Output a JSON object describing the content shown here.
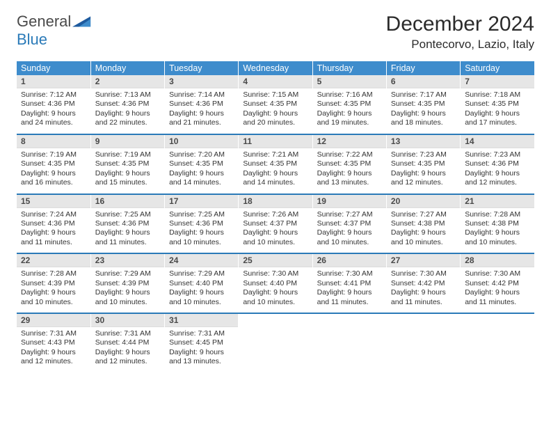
{
  "logo": {
    "word1": "General",
    "word2": "Blue"
  },
  "header": {
    "title": "December 2024",
    "location": "Pontecorvo, Lazio, Italy"
  },
  "colors": {
    "header_bg": "#3e8ccc",
    "row_border": "#2a7ab8",
    "daynum_bg": "#e6e6e6",
    "text": "#333333",
    "logo_blue": "#2a7ab8"
  },
  "weekdays": [
    "Sunday",
    "Monday",
    "Tuesday",
    "Wednesday",
    "Thursday",
    "Friday",
    "Saturday"
  ],
  "weeks": [
    [
      {
        "n": "1",
        "sr": "Sunrise: 7:12 AM",
        "ss": "Sunset: 4:36 PM",
        "d1": "Daylight: 9 hours",
        "d2": "and 24 minutes."
      },
      {
        "n": "2",
        "sr": "Sunrise: 7:13 AM",
        "ss": "Sunset: 4:36 PM",
        "d1": "Daylight: 9 hours",
        "d2": "and 22 minutes."
      },
      {
        "n": "3",
        "sr": "Sunrise: 7:14 AM",
        "ss": "Sunset: 4:36 PM",
        "d1": "Daylight: 9 hours",
        "d2": "and 21 minutes."
      },
      {
        "n": "4",
        "sr": "Sunrise: 7:15 AM",
        "ss": "Sunset: 4:35 PM",
        "d1": "Daylight: 9 hours",
        "d2": "and 20 minutes."
      },
      {
        "n": "5",
        "sr": "Sunrise: 7:16 AM",
        "ss": "Sunset: 4:35 PM",
        "d1": "Daylight: 9 hours",
        "d2": "and 19 minutes."
      },
      {
        "n": "6",
        "sr": "Sunrise: 7:17 AM",
        "ss": "Sunset: 4:35 PM",
        "d1": "Daylight: 9 hours",
        "d2": "and 18 minutes."
      },
      {
        "n": "7",
        "sr": "Sunrise: 7:18 AM",
        "ss": "Sunset: 4:35 PM",
        "d1": "Daylight: 9 hours",
        "d2": "and 17 minutes."
      }
    ],
    [
      {
        "n": "8",
        "sr": "Sunrise: 7:19 AM",
        "ss": "Sunset: 4:35 PM",
        "d1": "Daylight: 9 hours",
        "d2": "and 16 minutes."
      },
      {
        "n": "9",
        "sr": "Sunrise: 7:19 AM",
        "ss": "Sunset: 4:35 PM",
        "d1": "Daylight: 9 hours",
        "d2": "and 15 minutes."
      },
      {
        "n": "10",
        "sr": "Sunrise: 7:20 AM",
        "ss": "Sunset: 4:35 PM",
        "d1": "Daylight: 9 hours",
        "d2": "and 14 minutes."
      },
      {
        "n": "11",
        "sr": "Sunrise: 7:21 AM",
        "ss": "Sunset: 4:35 PM",
        "d1": "Daylight: 9 hours",
        "d2": "and 14 minutes."
      },
      {
        "n": "12",
        "sr": "Sunrise: 7:22 AM",
        "ss": "Sunset: 4:35 PM",
        "d1": "Daylight: 9 hours",
        "d2": "and 13 minutes."
      },
      {
        "n": "13",
        "sr": "Sunrise: 7:23 AM",
        "ss": "Sunset: 4:35 PM",
        "d1": "Daylight: 9 hours",
        "d2": "and 12 minutes."
      },
      {
        "n": "14",
        "sr": "Sunrise: 7:23 AM",
        "ss": "Sunset: 4:36 PM",
        "d1": "Daylight: 9 hours",
        "d2": "and 12 minutes."
      }
    ],
    [
      {
        "n": "15",
        "sr": "Sunrise: 7:24 AM",
        "ss": "Sunset: 4:36 PM",
        "d1": "Daylight: 9 hours",
        "d2": "and 11 minutes."
      },
      {
        "n": "16",
        "sr": "Sunrise: 7:25 AM",
        "ss": "Sunset: 4:36 PM",
        "d1": "Daylight: 9 hours",
        "d2": "and 11 minutes."
      },
      {
        "n": "17",
        "sr": "Sunrise: 7:25 AM",
        "ss": "Sunset: 4:36 PM",
        "d1": "Daylight: 9 hours",
        "d2": "and 10 minutes."
      },
      {
        "n": "18",
        "sr": "Sunrise: 7:26 AM",
        "ss": "Sunset: 4:37 PM",
        "d1": "Daylight: 9 hours",
        "d2": "and 10 minutes."
      },
      {
        "n": "19",
        "sr": "Sunrise: 7:27 AM",
        "ss": "Sunset: 4:37 PM",
        "d1": "Daylight: 9 hours",
        "d2": "and 10 minutes."
      },
      {
        "n": "20",
        "sr": "Sunrise: 7:27 AM",
        "ss": "Sunset: 4:38 PM",
        "d1": "Daylight: 9 hours",
        "d2": "and 10 minutes."
      },
      {
        "n": "21",
        "sr": "Sunrise: 7:28 AM",
        "ss": "Sunset: 4:38 PM",
        "d1": "Daylight: 9 hours",
        "d2": "and 10 minutes."
      }
    ],
    [
      {
        "n": "22",
        "sr": "Sunrise: 7:28 AM",
        "ss": "Sunset: 4:39 PM",
        "d1": "Daylight: 9 hours",
        "d2": "and 10 minutes."
      },
      {
        "n": "23",
        "sr": "Sunrise: 7:29 AM",
        "ss": "Sunset: 4:39 PM",
        "d1": "Daylight: 9 hours",
        "d2": "and 10 minutes."
      },
      {
        "n": "24",
        "sr": "Sunrise: 7:29 AM",
        "ss": "Sunset: 4:40 PM",
        "d1": "Daylight: 9 hours",
        "d2": "and 10 minutes."
      },
      {
        "n": "25",
        "sr": "Sunrise: 7:30 AM",
        "ss": "Sunset: 4:40 PM",
        "d1": "Daylight: 9 hours",
        "d2": "and 10 minutes."
      },
      {
        "n": "26",
        "sr": "Sunrise: 7:30 AM",
        "ss": "Sunset: 4:41 PM",
        "d1": "Daylight: 9 hours",
        "d2": "and 11 minutes."
      },
      {
        "n": "27",
        "sr": "Sunrise: 7:30 AM",
        "ss": "Sunset: 4:42 PM",
        "d1": "Daylight: 9 hours",
        "d2": "and 11 minutes."
      },
      {
        "n": "28",
        "sr": "Sunrise: 7:30 AM",
        "ss": "Sunset: 4:42 PM",
        "d1": "Daylight: 9 hours",
        "d2": "and 11 minutes."
      }
    ],
    [
      {
        "n": "29",
        "sr": "Sunrise: 7:31 AM",
        "ss": "Sunset: 4:43 PM",
        "d1": "Daylight: 9 hours",
        "d2": "and 12 minutes."
      },
      {
        "n": "30",
        "sr": "Sunrise: 7:31 AM",
        "ss": "Sunset: 4:44 PM",
        "d1": "Daylight: 9 hours",
        "d2": "and 12 minutes."
      },
      {
        "n": "31",
        "sr": "Sunrise: 7:31 AM",
        "ss": "Sunset: 4:45 PM",
        "d1": "Daylight: 9 hours",
        "d2": "and 13 minutes."
      },
      {
        "empty": true
      },
      {
        "empty": true
      },
      {
        "empty": true
      },
      {
        "empty": true
      }
    ]
  ]
}
